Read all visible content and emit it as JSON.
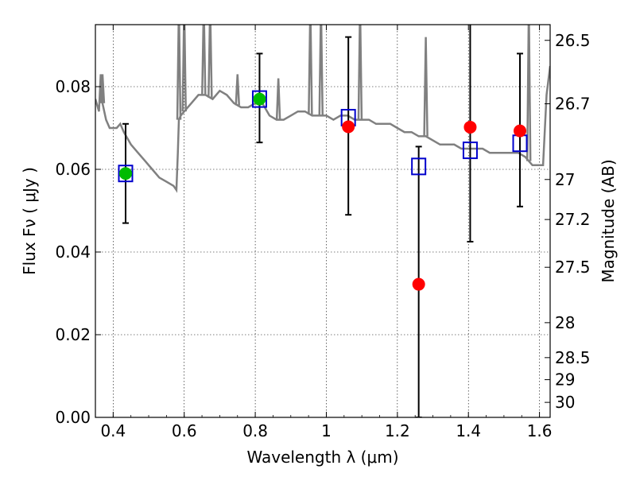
{
  "chart_data": {
    "type": "scatter",
    "xlabel": "Wavelength  λ (μm)",
    "ylabel": "Flux  Fν  ( μJy )",
    "y2label": "Magnitude (AB)",
    "xlim": [
      0.35,
      1.63
    ],
    "ylim": [
      0.0,
      0.095
    ],
    "grid": true,
    "x_ticks": [
      0.4,
      0.6,
      0.8,
      1.0,
      1.2,
      1.4,
      1.6
    ],
    "x_tick_labels": [
      "0.4",
      "0.6",
      "0.8",
      "1",
      "1.2",
      "1.4",
      "1.6"
    ],
    "y_ticks": [
      0.0,
      0.02,
      0.04,
      0.06,
      0.08
    ],
    "y_tick_labels": [
      "0.00",
      "0.02",
      "0.04",
      "0.06",
      "0.08"
    ],
    "mag_ticks": [
      26.5,
      26.7,
      27,
      27.2,
      27.5,
      28,
      28.5,
      29,
      30
    ],
    "mag_tick_labels": [
      "26.5",
      "26.7",
      "27",
      "27.2",
      "27.5",
      "28",
      "28.5",
      "29",
      "30"
    ],
    "series": [
      {
        "type": "line",
        "color": "#808080",
        "x": [
          0.35,
          0.36,
          0.365,
          0.37,
          0.38,
          0.39,
          0.4,
          0.41,
          0.42,
          0.43,
          0.45,
          0.47,
          0.49,
          0.51,
          0.53,
          0.55,
          0.57,
          0.578,
          0.582,
          0.585,
          0.59,
          0.6,
          0.62,
          0.64,
          0.66,
          0.68,
          0.7,
          0.72,
          0.74,
          0.76,
          0.78,
          0.8,
          0.82,
          0.84,
          0.86,
          0.88,
          0.9,
          0.92,
          0.94,
          0.96,
          0.98,
          1.0,
          1.02,
          1.04,
          1.06,
          1.08,
          1.1,
          1.12,
          1.14,
          1.16,
          1.18,
          1.2,
          1.22,
          1.24,
          1.26,
          1.28,
          1.3,
          1.32,
          1.34,
          1.36,
          1.38,
          1.4,
          1.42,
          1.44,
          1.46,
          1.48,
          1.5,
          1.52,
          1.54,
          1.56,
          1.58,
          1.6,
          1.61,
          1.62,
          1.63
        ],
        "y": [
          0.077,
          0.074,
          0.083,
          0.076,
          0.072,
          0.07,
          0.07,
          0.07,
          0.071,
          0.069,
          0.066,
          0.064,
          0.062,
          0.06,
          0.058,
          0.057,
          0.056,
          0.055,
          0.064,
          0.072,
          0.073,
          0.074,
          0.076,
          0.078,
          0.078,
          0.077,
          0.079,
          0.078,
          0.076,
          0.075,
          0.075,
          0.076,
          0.076,
          0.073,
          0.072,
          0.072,
          0.073,
          0.074,
          0.074,
          0.073,
          0.073,
          0.073,
          0.072,
          0.073,
          0.073,
          0.072,
          0.072,
          0.072,
          0.071,
          0.071,
          0.071,
          0.07,
          0.069,
          0.069,
          0.068,
          0.068,
          0.067,
          0.066,
          0.066,
          0.066,
          0.065,
          0.065,
          0.065,
          0.065,
          0.064,
          0.064,
          0.064,
          0.064,
          0.064,
          0.063,
          0.061,
          0.061,
          0.061,
          0.078,
          0.085
        ]
      },
      {
        "type": "scatter",
        "marker": "square-open",
        "color": "#0000cc",
        "x": [
          0.435,
          0.812,
          1.062,
          1.26,
          1.405,
          1.545
        ],
        "y": [
          0.059,
          0.077,
          0.0725,
          0.0607,
          0.0646,
          0.0663
        ]
      },
      {
        "type": "scatter",
        "marker": "circle",
        "color": "#00bb00",
        "x": [
          0.435,
          0.812
        ],
        "y": [
          0.059,
          0.077
        ],
        "yerr_low": [
          0.047,
          0.0665
        ],
        "yerr_high": [
          0.071,
          0.088
        ]
      },
      {
        "type": "scatter",
        "marker": "circle",
        "color": "#ff0000",
        "x": [
          1.062,
          1.26,
          1.405,
          1.545
        ],
        "y": [
          0.0703,
          0.0322,
          0.0702,
          0.0693
        ],
        "yerr_low": [
          0.049,
          0.0,
          0.0425,
          0.051
        ],
        "yerr_high": [
          0.092,
          0.0655,
          0.1,
          0.088
        ]
      }
    ]
  }
}
